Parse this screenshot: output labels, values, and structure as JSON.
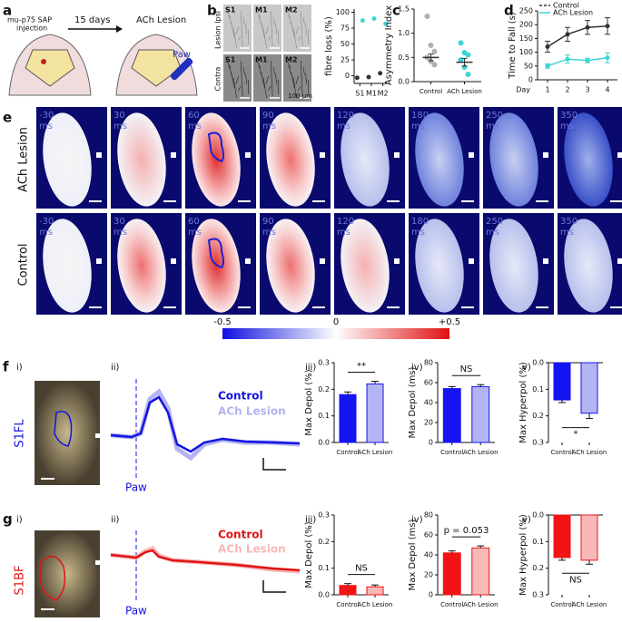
{
  "panels": {
    "a": {
      "label": "a",
      "injection_line1": "mu-p75 SAP",
      "injection_line2": "injection",
      "arrow": "15 days",
      "result": "ACh Lesion",
      "paw": "Paw"
    },
    "b": {
      "label": "b",
      "regions": [
        "S1",
        "M1",
        "M2"
      ],
      "rows": [
        "Lesion Ipsi",
        "Contra"
      ],
      "scale": "100 μm"
    },
    "c": {
      "label": "c"
    },
    "d": {
      "label": "d"
    },
    "e": {
      "label": "e",
      "rows": [
        "ACh Lesion",
        "Control"
      ],
      "times": [
        "-30",
        "30",
        "60",
        "90",
        "120",
        "180",
        "250",
        "350"
      ],
      "unit": "ms",
      "colorbar": [
        "-0.5",
        "0",
        "+0.5"
      ]
    },
    "f": {
      "label": "f",
      "sub_labels": [
        "i)",
        "ii)",
        "iii)",
        "iv)",
        "v)"
      ],
      "region": "S1FL",
      "legend": [
        "Control",
        "ACh Lesion"
      ],
      "paw": "Paw"
    },
    "g": {
      "label": "g",
      "sub_labels": [
        "i)",
        "ii)",
        "iii)",
        "iv)",
        "v)"
      ],
      "region": "S1BF",
      "legend": [
        "Control",
        "ACh Lesion"
      ],
      "paw": "Paw"
    }
  },
  "chart_data": [
    {
      "type": "scatter",
      "y_label": "fibre loss (%)",
      "categories": [
        "S1",
        "M1",
        "M2"
      ],
      "series": [
        {
          "color": "#3fd3d3",
          "values": [
            87,
            90,
            82
          ]
        },
        {
          "color": "#333333",
          "values": [
            -3,
            -2,
            4
          ]
        }
      ],
      "ylim": [
        -12,
        105
      ],
      "yticks": [
        0,
        25,
        50,
        75,
        100
      ]
    },
    {
      "type": "dot",
      "y_label": "Asymmetry Index",
      "categories": [
        "Control",
        "ACh Lesion"
      ],
      "colors": [
        "#b0b0b0",
        "#3fd3d3"
      ],
      "means": [
        0.5,
        0.4
      ],
      "errors": [
        0.07,
        0.08
      ],
      "points": [
        [
          1.35,
          0.75,
          0.62,
          0.5,
          0.42,
          0.35
        ],
        [
          0.8,
          0.6,
          0.55,
          0.45,
          0.3,
          0.15
        ]
      ],
      "ylim": [
        0,
        1.5
      ],
      "yticks": [
        {
          "value": 0,
          "label": "0.0"
        },
        0.5,
        {
          "value": 1,
          "label": "1.0"
        },
        1.5
      ]
    },
    {
      "type": "line",
      "y_label": "Time to Fall (s)",
      "x_label": "Day",
      "categories": [
        "1",
        "2",
        "3",
        "4"
      ],
      "series": [
        {
          "name": "Control",
          "color": "#333333",
          "values": [
            120,
            165,
            190,
            195
          ],
          "errors": [
            20,
            25,
            25,
            30
          ]
        },
        {
          "name": "ACh Lesion",
          "color": "#3fd3d3",
          "values": [
            50,
            75,
            70,
            80
          ],
          "errors": [
            8,
            15,
            8,
            18
          ]
        }
      ],
      "ylim": [
        0,
        250
      ],
      "yticks": [
        0,
        50,
        100,
        150,
        200,
        250
      ]
    },
    {
      "type": "bar",
      "y_label": "Max Depol   (%)",
      "categories": [
        "Control",
        "ACh Lesion"
      ],
      "values": [
        0.18,
        0.22
      ],
      "errors": [
        0.01,
        0.01
      ],
      "colors": [
        "#1414f0",
        "#b4b4f2"
      ],
      "edge": "#1414f0",
      "annotation": "**",
      "ylim": [
        0,
        0.3
      ],
      "yticks": [
        {
          "value": 0,
          "label": "0.0"
        },
        0.1,
        0.2,
        0.3
      ]
    },
    {
      "type": "bar",
      "y_label": "Max Depol  (ms)",
      "categories": [
        "Control",
        "ACh Lesion"
      ],
      "values": [
        54,
        56
      ],
      "errors": [
        2,
        2
      ],
      "colors": [
        "#1414f0",
        "#b4b4f2"
      ],
      "edge": "#1414f0",
      "annotation": "NS",
      "ylim": [
        0,
        80
      ],
      "yticks": [
        0,
        20,
        40,
        60,
        80
      ]
    },
    {
      "type": "bar",
      "y_label": "Max Hyperpol  (%)",
      "inverted": true,
      "categories": [
        "Control",
        "ACh Lesion"
      ],
      "values": [
        0.14,
        0.19
      ],
      "errors": [
        0.01,
        0.02
      ],
      "colors": [
        "#1414f0",
        "#b4b4f2"
      ],
      "edge": "#1414f0",
      "annotation": "*",
      "ylim": [
        0,
        0.3
      ],
      "yticks": [
        {
          "value": 0,
          "label": "0.0"
        },
        0.1,
        0.2,
        0.3
      ]
    },
    {
      "type": "bar",
      "y_label": "Max Depol   (%)",
      "categories": [
        "Control",
        "ACh Lesion"
      ],
      "values": [
        0.035,
        0.03
      ],
      "errors": [
        0.007,
        0.007
      ],
      "colors": [
        "#f01414",
        "#f8b8b8"
      ],
      "edge": "#f01414",
      "annotation": "NS",
      "ylim": [
        0,
        0.3
      ],
      "yticks": [
        {
          "value": 0,
          "label": "0.0"
        },
        0.1,
        0.2,
        0.3
      ]
    },
    {
      "type": "bar",
      "y_label": "Max Depol  (ms)",
      "categories": [
        "Control",
        "ACh Lesion"
      ],
      "values": [
        42,
        47
      ],
      "errors": [
        2,
        2
      ],
      "colors": [
        "#f01414",
        "#f8b8b8"
      ],
      "edge": "#f01414",
      "annotation": "p = 0.053",
      "ylim": [
        0,
        80
      ],
      "yticks": [
        0,
        20,
        40,
        60,
        80
      ]
    },
    {
      "type": "bar",
      "y_label": "Max Hyperpol  (%)",
      "inverted": true,
      "categories": [
        "Control",
        "ACh Lesion"
      ],
      "values": [
        0.16,
        0.17
      ],
      "errors": [
        0.01,
        0.015
      ],
      "colors": [
        "#f01414",
        "#f8b8b8"
      ],
      "edge": "#f01414",
      "annotation": "NS",
      "ylim": [
        0,
        0.3
      ],
      "yticks": [
        {
          "value": 0,
          "label": "0.0"
        },
        0.1,
        0.2,
        0.3
      ]
    }
  ]
}
